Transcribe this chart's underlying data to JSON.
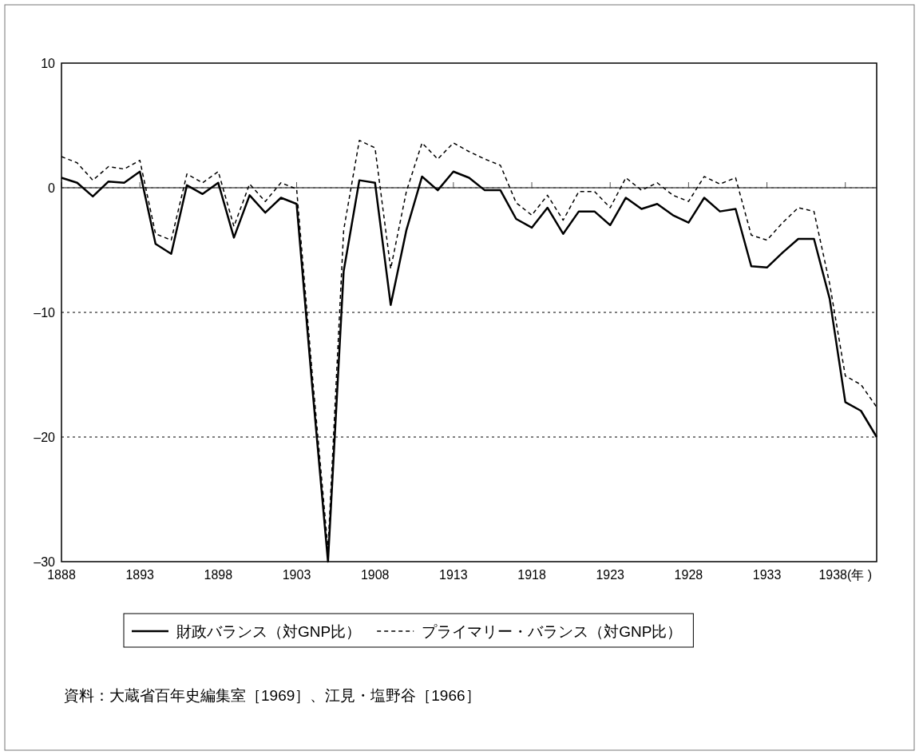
{
  "chart_data": {
    "type": "line",
    "x": [
      1888,
      1889,
      1890,
      1891,
      1892,
      1893,
      1894,
      1895,
      1896,
      1897,
      1898,
      1899,
      1900,
      1901,
      1902,
      1903,
      1904,
      1905,
      1906,
      1907,
      1908,
      1909,
      1910,
      1911,
      1912,
      1913,
      1914,
      1915,
      1916,
      1917,
      1918,
      1919,
      1920,
      1921,
      1922,
      1923,
      1924,
      1925,
      1926,
      1927,
      1928,
      1929,
      1930,
      1931,
      1932,
      1933,
      1934,
      1935,
      1936,
      1937,
      1938,
      1939,
      1940
    ],
    "series": [
      {
        "name": "財政バランス（対GNP比）",
        "color": "#000000",
        "line_style": "solid",
        "values": [
          0.8,
          0.4,
          -0.7,
          0.5,
          0.4,
          1.3,
          -4.5,
          -5.3,
          0.2,
          -0.5,
          0.4,
          -4.0,
          -0.6,
          -2.0,
          -0.8,
          -1.3,
          -16,
          -30,
          -6.7,
          0.6,
          0.4,
          -9.4,
          -3.4,
          0.9,
          -0.2,
          1.3,
          0.8,
          -0.2,
          -0.2,
          -2.5,
          -3.2,
          -1.6,
          -3.7,
          -1.9,
          -1.9,
          -3.0,
          -0.8,
          -1.7,
          -1.3,
          -2.2,
          -2.8,
          -0.8,
          -1.9,
          -1.7,
          -6.3,
          -6.4,
          -5.2,
          -4.1,
          -4.1,
          -8.9,
          -17.2,
          -17.9,
          -20
        ]
      },
      {
        "name": "プライマリー・バランス（対GNP比）",
        "color": "#000000",
        "line_style": "dashed",
        "values": [
          2.5,
          2.0,
          0.6,
          1.7,
          1.5,
          2.2,
          -3.7,
          -4.2,
          1.1,
          0.4,
          1.3,
          -3.1,
          0.3,
          -1.1,
          0.4,
          -0.1,
          -15,
          -29,
          -3.4,
          3.8,
          3.2,
          -6.5,
          -0.3,
          3.6,
          2.3,
          3.6,
          2.9,
          2.3,
          1.8,
          -1.2,
          -2.2,
          -0.6,
          -2.6,
          -0.3,
          -0.3,
          -1.6,
          0.8,
          -0.2,
          0.4,
          -0.6,
          -1.1,
          0.9,
          0.3,
          0.8,
          -3.8,
          -4.2,
          -2.8,
          -1.6,
          -1.9,
          -7.7,
          -15.1,
          -15.8,
          -17.6
        ]
      }
    ],
    "xlim": [
      1888,
      1940
    ],
    "xticks": [
      1888,
      1893,
      1898,
      1903,
      1908,
      1913,
      1918,
      1923,
      1928,
      1933,
      {
        "value": 1938,
        "label": "1938(年 )"
      }
    ],
    "ylim": [
      -30,
      10
    ],
    "yticks": [
      10,
      0,
      {
        "value": -10,
        "label": "–10"
      },
      {
        "value": -20,
        "label": "–20"
      },
      {
        "value": -30,
        "label": "–30"
      }
    ],
    "grid": "y",
    "ref_lines": [
      {
        "axis": "y",
        "value": 0,
        "color": "#555555",
        "line_style": "solid"
      }
    ],
    "legend": "bottom",
    "annotations": [
      "資料：大蔵省百年史編集室［1969］、江見・塩野谷［1966］"
    ]
  }
}
